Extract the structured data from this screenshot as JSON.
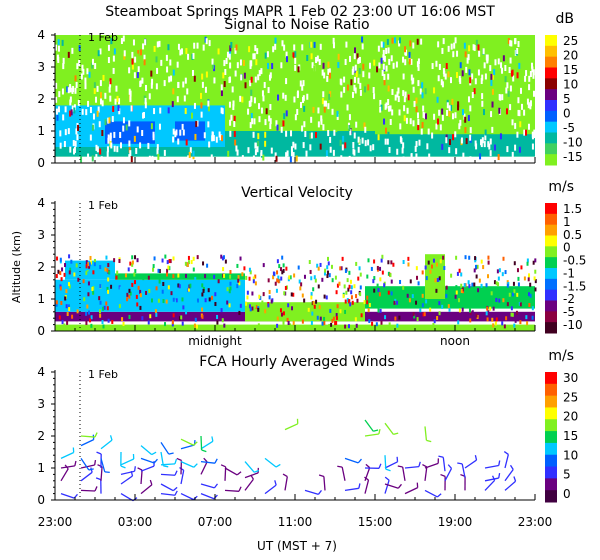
{
  "header": {
    "title": "Steamboat Springs   MAPR   1 Feb 02   23:00 UT   16:06   MST"
  },
  "x_axis": {
    "label": "UT  (MST + 7)",
    "ticks": [
      "23:00",
      "03:00",
      "07:00",
      "11:00",
      "15:00",
      "19:00",
      "23:00"
    ],
    "tick_hours": [
      0,
      4,
      8,
      12,
      16,
      20,
      24
    ],
    "range_hours": [
      0,
      24
    ],
    "local_time_labels": [
      {
        "text": "midnight",
        "hour": 8
      },
      {
        "text": "noon",
        "hour": 20
      }
    ],
    "day_marker": {
      "text": "1 Feb",
      "hour": 1.25
    }
  },
  "chart_data": [
    {
      "type": "heatmap",
      "title": "Signal to Noise Ratio",
      "ylabel": "",
      "ylim": [
        0,
        4
      ],
      "yticks": [
        "0",
        "1",
        "2",
        "3",
        "4"
      ],
      "colorbar": {
        "unit": "dB",
        "labels": [
          "25",
          "20",
          "15",
          "10",
          "5",
          "0",
          "-5",
          "-10",
          "-15"
        ],
        "colors": [
          "#ffff00",
          "#ffbf00",
          "#ff7f00",
          "#ff0000",
          "#8b0000",
          "#6a0080",
          "#3030ff",
          "#0060ff",
          "#00c8ff",
          "#00b8a0",
          "#40d060",
          "#80f020"
        ]
      },
      "bands": [
        {
          "h0": 0.0,
          "h1": 24.0,
          "z0": 0.0,
          "z1": 0.2,
          "color": "#ffffff"
        },
        {
          "h0": 0.0,
          "h1": 24.0,
          "z0": 0.2,
          "z1": 0.5,
          "color": "#00b8a0"
        },
        {
          "h0": 0.0,
          "h1": 8.5,
          "z0": 0.5,
          "z1": 1.8,
          "color": "#00c8ff"
        },
        {
          "h0": 8.5,
          "h1": 16.0,
          "z0": 0.5,
          "z1": 1.0,
          "color": "#00b8a0"
        },
        {
          "h0": 2.5,
          "h1": 5.0,
          "z0": 0.6,
          "z1": 1.3,
          "color": "#0060ff"
        },
        {
          "h0": 6.0,
          "h1": 7.5,
          "z0": 0.7,
          "z1": 1.3,
          "color": "#0060ff"
        },
        {
          "h0": 16.0,
          "h1": 24.0,
          "z0": 0.5,
          "z1": 0.9,
          "color": "#00b8a0"
        }
      ]
    },
    {
      "type": "heatmap",
      "title": "Vertical Velocity",
      "ylabel": "Altitude (km)",
      "ylim": [
        0,
        4
      ],
      "yticks": [
        "0",
        "1",
        "2",
        "3",
        "4"
      ],
      "colorbar": {
        "unit": "m/s",
        "labels": [
          "1.5",
          "1",
          "0.5",
          "0",
          "-0.5",
          "-1",
          "-1.5",
          "-2",
          "-5",
          "-10"
        ],
        "colors": [
          "#ff0000",
          "#ff6000",
          "#ffa000",
          "#ffff00",
          "#80f020",
          "#00d050",
          "#00c8ff",
          "#0070ff",
          "#3030ff",
          "#6a0080",
          "#8b0040",
          "#400020"
        ]
      },
      "bands": [
        {
          "h0": 0.0,
          "h1": 24.0,
          "z0": 0.0,
          "z1": 0.2,
          "color": "#80f020"
        },
        {
          "h0": 0.0,
          "h1": 24.0,
          "z0": 0.3,
          "z1": 0.6,
          "color": "#6a0080"
        },
        {
          "h0": 0.0,
          "h1": 9.5,
          "z0": 0.6,
          "z1": 1.6,
          "color": "#00c8ff"
        },
        {
          "h0": 0.5,
          "h1": 3.0,
          "z0": 1.6,
          "z1": 2.2,
          "color": "#00c8ff"
        },
        {
          "h0": 3.0,
          "h1": 9.5,
          "z0": 1.6,
          "z1": 1.8,
          "color": "#00d050"
        },
        {
          "h0": 9.5,
          "h1": 15.5,
          "z0": 0.3,
          "z1": 0.9,
          "color": "#80f020"
        },
        {
          "h0": 15.5,
          "h1": 24.0,
          "z0": 0.7,
          "z1": 1.4,
          "color": "#00d050"
        },
        {
          "h0": 18.5,
          "h1": 19.5,
          "z0": 1.0,
          "z1": 2.4,
          "color": "#80f020"
        }
      ]
    },
    {
      "type": "scatter",
      "title": "FCA Hourly Averaged Winds",
      "ylabel": "",
      "ylim": [
        0,
        4
      ],
      "yticks": [
        "0",
        "1",
        "2",
        "3",
        "4"
      ],
      "colorbar": {
        "unit": "m/s",
        "labels": [
          "30",
          "25",
          "20",
          "15",
          "10",
          "5",
          "0"
        ],
        "colors": [
          "#ff0000",
          "#ff6000",
          "#ffa000",
          "#ffff00",
          "#80f020",
          "#00d050",
          "#00c8ff",
          "#0060ff",
          "#3030ff",
          "#6a0080",
          "#400040"
        ]
      },
      "barb_columns": [
        {
          "hour": 0.3,
          "altitudes": [
            0.2,
            0.6,
            1.0,
            1.3
          ]
        },
        {
          "hour": 1.3,
          "altitudes": [
            0.3,
            0.6,
            1.0,
            1.3,
            1.7,
            2.0
          ]
        },
        {
          "hour": 2.3,
          "altitudes": [
            0.2,
            0.6,
            1.0,
            1.3,
            1.6
          ]
        },
        {
          "hour": 3.3,
          "altitudes": [
            0.2,
            0.5,
            0.8,
            1.1,
            1.5
          ]
        },
        {
          "hour": 4.3,
          "altitudes": [
            0.2,
            0.5,
            0.9,
            1.3,
            1.7
          ]
        },
        {
          "hour": 5.3,
          "altitudes": [
            0.2,
            0.5,
            0.8,
            1.1,
            1.5,
            1.8
          ]
        },
        {
          "hour": 6.3,
          "altitudes": [
            0.2,
            0.5,
            0.8,
            1.2,
            1.6,
            1.9
          ]
        },
        {
          "hour": 7.3,
          "altitudes": [
            0.2,
            0.5,
            0.8,
            1.2,
            1.6,
            2.0
          ]
        },
        {
          "hour": 8.5,
          "altitudes": [
            0.3,
            0.6,
            1.0
          ]
        },
        {
          "hour": 9.5,
          "altitudes": [
            0.3,
            0.7,
            1.2
          ]
        },
        {
          "hour": 10.5,
          "altitudes": [
            0.2,
            1.3
          ]
        },
        {
          "hour": 11.5,
          "altitudes": [
            0.3,
            2.2
          ]
        },
        {
          "hour": 12.5,
          "altitudes": [
            0.3
          ]
        },
        {
          "hour": 13.5,
          "altitudes": [
            0.3
          ]
        },
        {
          "hour": 14.5,
          "altitudes": [
            0.3,
            0.6,
            1.3
          ]
        },
        {
          "hour": 15.5,
          "altitudes": [
            0.2,
            0.6,
            1.0,
            2.0,
            2.5
          ]
        },
        {
          "hour": 16.5,
          "altitudes": [
            0.2,
            0.5,
            1.0,
            1.4,
            2.4
          ]
        },
        {
          "hour": 17.5,
          "altitudes": [
            0.2,
            0.6,
            1.0
          ]
        },
        {
          "hour": 18.5,
          "altitudes": [
            0.3,
            0.6,
            1.0,
            2.3
          ]
        },
        {
          "hour": 19.5,
          "altitudes": [
            0.3,
            0.6,
            0.9
          ]
        },
        {
          "hour": 20.5,
          "altitudes": [
            0.3,
            0.7,
            1.0
          ]
        },
        {
          "hour": 21.5,
          "altitudes": [
            0.3,
            0.6,
            1.0
          ]
        },
        {
          "hour": 22.5,
          "altitudes": [
            0.3,
            0.6,
            1.0
          ]
        }
      ]
    }
  ]
}
